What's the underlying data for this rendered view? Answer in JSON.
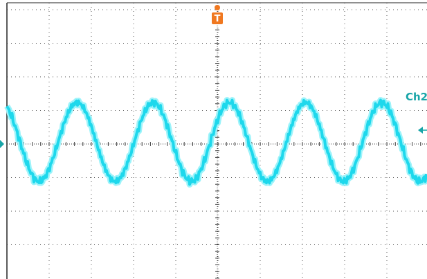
{
  "channel_label": "Ch2",
  "trigger_label": "T"
}
